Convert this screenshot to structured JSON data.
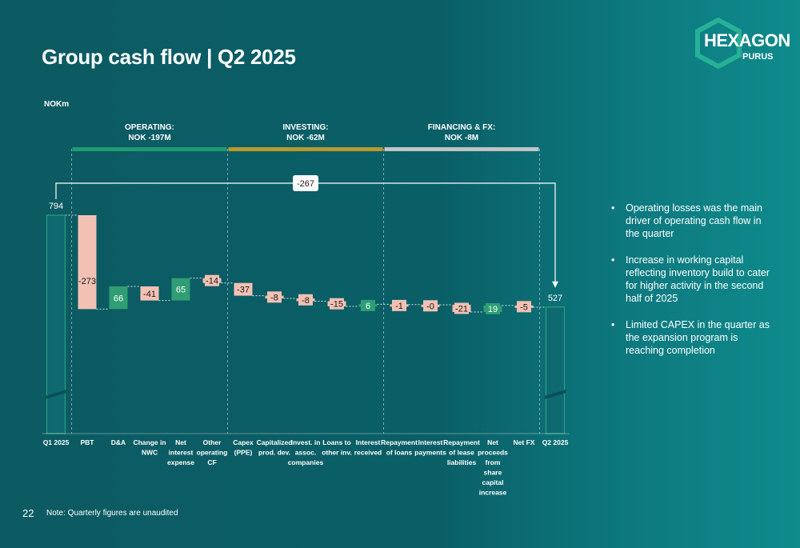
{
  "slide": {
    "title": "Group cash flow | Q2 2025",
    "page_number": "22",
    "note": "Note: Quarterly figures are unaudited"
  },
  "logo": {
    "main": "HEXAGON",
    "sub": "PURUS"
  },
  "bullets": [
    "Operating losses was the main driver of operating cash flow in the quarter",
    "Increase in working capital reflecting inventory build to cater for higher activity in the second half of 2025",
    "Limited CAPEX in the quarter as the expansion program is reaching completion"
  ],
  "colors": {
    "positive": "#2f9e74",
    "negative": "#f2c1b4",
    "total_fill": "#0e6a70",
    "total_stroke": "#2aa07c",
    "operating": "#1f9a72",
    "investing": "#b79a2b",
    "financing": "#bfc4c4"
  },
  "chart_data": {
    "type": "waterfall",
    "unit": "NOKm",
    "ylim": [
      0,
      900
    ],
    "axis_break": true,
    "grid": false,
    "sections": [
      {
        "key": "operating",
        "label": "OPERATING:",
        "value": "NOK -197M",
        "from": 1,
        "to": 5
      },
      {
        "key": "investing",
        "label": "INVESTING:",
        "value": "NOK -62M",
        "from": 6,
        "to": 10
      },
      {
        "key": "financing",
        "label": "FINANCING & FX:",
        "value": "NOK -8M",
        "from": 11,
        "to": 15
      }
    ],
    "bridge": {
      "label": "-267",
      "from": 0,
      "to": 16
    },
    "steps": [
      {
        "category": [
          "Q1 2025"
        ],
        "type": "total",
        "value": 794,
        "label": "794"
      },
      {
        "category": [
          "PBT"
        ],
        "type": "delta",
        "value": -273,
        "label": "-273"
      },
      {
        "category": [
          "D&A"
        ],
        "type": "delta",
        "value": 66,
        "label": "66"
      },
      {
        "category": [
          "Change in",
          "NWC"
        ],
        "type": "delta",
        "value": -41,
        "label": "-41"
      },
      {
        "category": [
          "Net",
          "interest",
          "expense"
        ],
        "type": "delta",
        "value": 65,
        "label": "65"
      },
      {
        "category": [
          "Other",
          "operating",
          "CF"
        ],
        "type": "delta",
        "value": -14,
        "label": "-14"
      },
      {
        "category": [
          "Capex",
          "(PPE)"
        ],
        "type": "delta",
        "value": -37,
        "label": "-37"
      },
      {
        "category": [
          "Capitalized",
          "prod. dev."
        ],
        "type": "delta",
        "value": -8,
        "label": "-8"
      },
      {
        "category": [
          "Invest. in",
          "assoc.",
          "companies"
        ],
        "type": "delta",
        "value": -8,
        "label": "-8"
      },
      {
        "category": [
          "Loans to",
          "other inv."
        ],
        "type": "delta",
        "value": -15,
        "label": "-15"
      },
      {
        "category": [
          "Interest",
          "received"
        ],
        "type": "delta",
        "value": 6,
        "label": "6"
      },
      {
        "category": [
          "Repayment",
          "of loans"
        ],
        "type": "delta",
        "value": -1,
        "label": "-1"
      },
      {
        "category": [
          "Interest",
          "payments"
        ],
        "type": "delta",
        "value": -0.4,
        "label": "-0"
      },
      {
        "category": [
          "Repayment",
          "of lease",
          "liabilities"
        ],
        "type": "delta",
        "value": -21,
        "label": "-21"
      },
      {
        "category": [
          "Net",
          "proceeds",
          "from",
          "share",
          "capital",
          "increase"
        ],
        "type": "delta",
        "value": 19,
        "label": "19"
      },
      {
        "category": [
          "Net FX"
        ],
        "type": "delta",
        "value": -5,
        "label": "-5"
      },
      {
        "category": [
          "Q2 2025"
        ],
        "type": "total",
        "value": 527,
        "label": "527"
      }
    ]
  }
}
